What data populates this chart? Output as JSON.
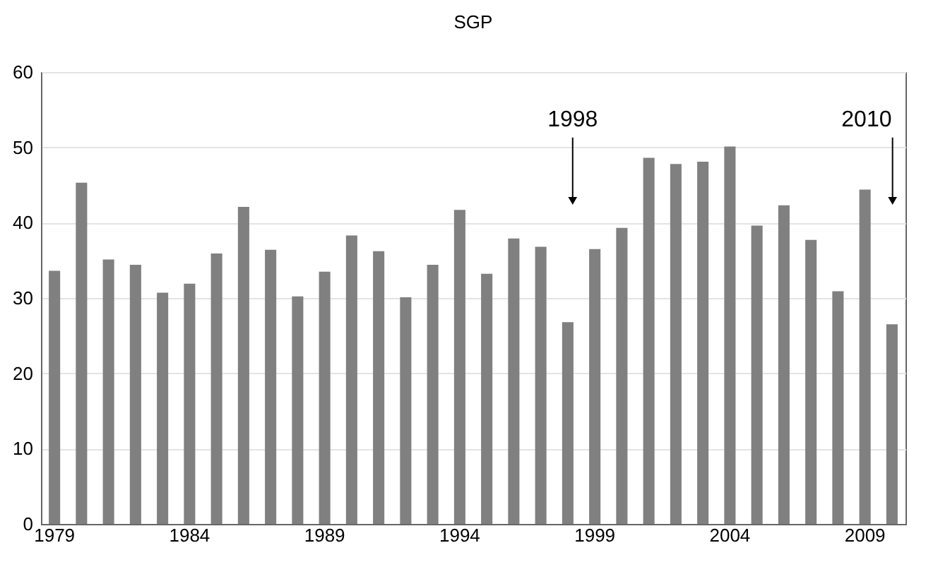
{
  "chart_data": {
    "type": "bar",
    "title": "SGP",
    "categories": [
      "1979",
      null,
      null,
      null,
      null,
      "1984",
      null,
      null,
      null,
      null,
      "1989",
      null,
      null,
      null,
      null,
      "1994",
      null,
      null,
      null,
      null,
      "1999",
      null,
      null,
      null,
      null,
      "2004",
      null,
      null,
      null,
      null,
      "2009",
      null
    ],
    "values": [
      33.6,
      45.3,
      35.1,
      34.4,
      30.7,
      31.9,
      35.9,
      42.1,
      36.4,
      30.2,
      33.5,
      38.3,
      36.2,
      30.1,
      34.4,
      41.7,
      33.2,
      37.9,
      36.8,
      26.8,
      36.5,
      39.3,
      48.6,
      47.8,
      48.1,
      50.1,
      39.6,
      42.3,
      37.7,
      30.9,
      44.4,
      26.5
    ],
    "color": "#808080",
    "ylim": [
      0,
      60
    ],
    "yticks": [
      0,
      10,
      20,
      30,
      40,
      50,
      60
    ],
    "grid": "y",
    "annotations": [
      "1998",
      "2010"
    ]
  }
}
